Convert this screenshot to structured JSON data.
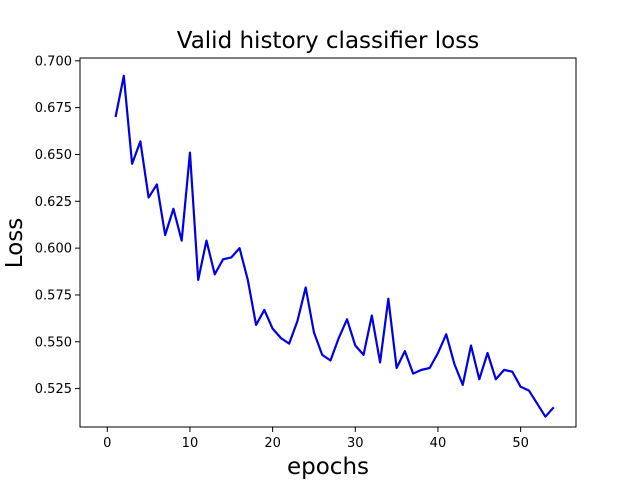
{
  "chart_data": {
    "type": "line",
    "title": "Valid history classifier loss",
    "xlabel": "epochs",
    "ylabel": "Loss",
    "xlim": [
      -3.3,
      56.7
    ],
    "ylim": [
      0.5045,
      0.7015
    ],
    "xticks": [
      0,
      10,
      20,
      30,
      40,
      50
    ],
    "yticks": [
      0.525,
      0.55,
      0.575,
      0.6,
      0.625,
      0.65,
      0.675,
      0.7
    ],
    "ytick_labels": [
      "0.525",
      "0.550",
      "0.575",
      "0.600",
      "0.625",
      "0.650",
      "0.675",
      "0.700"
    ],
    "grid": false,
    "series": [
      {
        "color": "#0000e6",
        "x": [
          1,
          2,
          3,
          4,
          5,
          6,
          7,
          8,
          9,
          10,
          11,
          12,
          13,
          14,
          15,
          16,
          17,
          18,
          19,
          20,
          21,
          22,
          23,
          24,
          25,
          26,
          27,
          28,
          29,
          30,
          31,
          32,
          33,
          34,
          35,
          36,
          37,
          38,
          39,
          40,
          41,
          42,
          43,
          44,
          45,
          46,
          47,
          48,
          49,
          50,
          51,
          52,
          53,
          54
        ],
        "y": [
          0.67,
          0.692,
          0.645,
          0.657,
          0.627,
          0.634,
          0.607,
          0.621,
          0.604,
          0.651,
          0.583,
          0.604,
          0.586,
          0.594,
          0.595,
          0.6,
          0.583,
          0.559,
          0.567,
          0.557,
          0.552,
          0.549,
          0.561,
          0.579,
          0.555,
          0.543,
          0.54,
          0.552,
          0.562,
          0.548,
          0.543,
          0.564,
          0.539,
          0.573,
          0.536,
          0.545,
          0.533,
          0.535,
          0.536,
          0.544,
          0.554,
          0.538,
          0.527,
          0.548,
          0.53,
          0.544,
          0.53,
          0.535,
          0.534,
          0.526,
          0.524,
          0.517,
          0.51,
          0.515
        ]
      }
    ]
  }
}
